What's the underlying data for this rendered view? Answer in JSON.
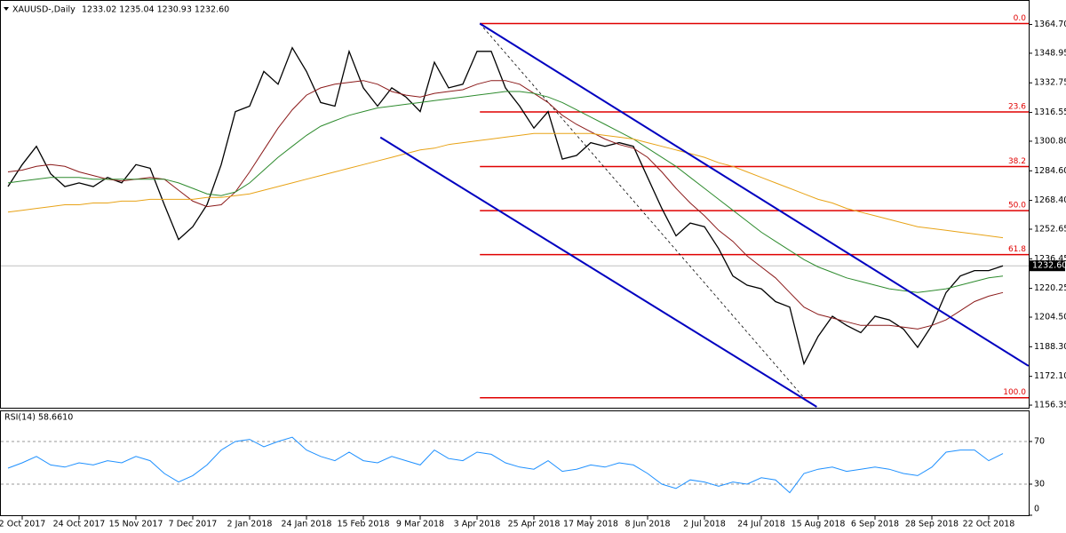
{
  "chart_data": {
    "type": "line",
    "title": "XAUUSD-,Daily",
    "ohlc_label": "1233.02 1235.04 1230.93 1232.60",
    "categories": [
      null,
      "2 Oct 2017",
      null,
      null,
      null,
      "24 Oct 2017",
      null,
      null,
      null,
      "15 Nov 2017",
      null,
      null,
      null,
      "7 Dec 2017",
      null,
      null,
      null,
      "2 Jan 2018",
      null,
      null,
      null,
      "24 Jan 2018",
      null,
      null,
      null,
      "15 Feb 2018",
      null,
      null,
      null,
      "9 Mar 2018",
      null,
      null,
      null,
      "3 Apr 2018",
      null,
      null,
      null,
      "25 Apr 2018",
      null,
      null,
      null,
      "17 May 2018",
      null,
      null,
      null,
      "8 Jun 2018",
      null,
      null,
      null,
      "2 Jul 2018",
      null,
      null,
      null,
      "24 Jul 2018",
      null,
      null,
      null,
      "15 Aug 2018",
      null,
      null,
      null,
      "6 Sep 2018",
      null,
      null,
      null,
      "28 Sep 2018",
      null,
      null,
      null,
      "22 Oct 2018",
      null
    ],
    "ylim": [
      1155.4,
      1374.2
    ],
    "yticks": [
      {
        "value": 1364.7,
        "label": "1364.70"
      },
      {
        "value": 1348.95,
        "label": "1348.95"
      },
      {
        "value": 1332.75,
        "label": "1332.75"
      },
      {
        "value": 1316.55,
        "label": "1316.55"
      },
      {
        "value": 1300.8,
        "label": "1300.80"
      },
      {
        "value": 1284.6,
        "label": "1284.60"
      },
      {
        "value": 1268.4,
        "label": "1268.40"
      },
      {
        "value": 1252.65,
        "label": "1252.65"
      },
      {
        "value": 1236.45,
        "label": "1236.45"
      },
      {
        "value": 1220.25,
        "label": "1220.25"
      },
      {
        "value": 1204.5,
        "label": "1204.50"
      },
      {
        "value": 1188.3,
        "label": "1188.30"
      },
      {
        "value": 1172.1,
        "label": "1172.10"
      },
      {
        "value": 1156.35,
        "label": "1156.35"
      }
    ],
    "series": [
      {
        "color": "#000000",
        "values": [
          1276,
          1288,
          1298,
          1283,
          1276,
          1278,
          1276,
          1281,
          1278,
          1288,
          1286,
          1266,
          1247,
          1254,
          1266,
          1288,
          1317,
          1320,
          1339,
          1332,
          1352,
          1339,
          1322,
          1320,
          1350,
          1330,
          1320,
          1330,
          1325,
          1317,
          1344,
          1330,
          1332,
          1350,
          1350,
          1330,
          1320,
          1308,
          1317,
          1291,
          1293,
          1300,
          1298,
          1300,
          1298,
          1281,
          1264,
          1249,
          1256,
          1254,
          1242,
          1227,
          1222,
          1220,
          1213,
          1210,
          1179,
          1194,
          1205,
          1200,
          1196,
          1205,
          1203,
          1198,
          1188,
          1200,
          1218,
          1227,
          1230,
          1230,
          1232.6
        ]
      },
      {
        "color": "#8b1a1a",
        "values": [
          1284,
          1285,
          1287,
          1288,
          1287,
          1284,
          1282,
          1280,
          1279,
          1280,
          1281,
          1280,
          1274,
          1268,
          1265,
          1266,
          1273,
          1284,
          1296,
          1308,
          1318,
          1326,
          1330,
          1332,
          1333,
          1334,
          1332,
          1328,
          1326,
          1325,
          1327,
          1328,
          1329,
          1332,
          1334,
          1334,
          1332,
          1327,
          1322,
          1315,
          1310,
          1306,
          1302,
          1299,
          1297,
          1292,
          1284,
          1275,
          1267,
          1260,
          1252,
          1246,
          1238,
          1232,
          1226,
          1218,
          1210,
          1206,
          1204,
          1202,
          1200,
          1200,
          1200,
          1199,
          1198,
          1200,
          1203,
          1208,
          1213,
          1216,
          1218
        ]
      },
      {
        "color": "#2e8b2e",
        "values": [
          1278,
          1279,
          1280,
          1281,
          1281,
          1281,
          1280,
          1280,
          1280,
          1280,
          1280,
          1280,
          1278,
          1275,
          1272,
          1271,
          1273,
          1278,
          1285,
          1292,
          1298,
          1304,
          1309,
          1312,
          1315,
          1317,
          1319,
          1320,
          1321,
          1322,
          1323,
          1324,
          1325,
          1326,
          1327,
          1328,
          1328,
          1327,
          1325,
          1322,
          1318,
          1314,
          1310,
          1306,
          1302,
          1297,
          1292,
          1287,
          1281,
          1275,
          1269,
          1263,
          1257,
          1251,
          1246,
          1241,
          1236,
          1232,
          1229,
          1226,
          1224,
          1222,
          1220,
          1219,
          1218,
          1219,
          1220,
          1222,
          1224,
          1226,
          1227
        ]
      },
      {
        "color": "#e8a317",
        "values": [
          1262,
          1263,
          1264,
          1265,
          1266,
          1266,
          1267,
          1267,
          1268,
          1268,
          1269,
          1269,
          1269,
          1269,
          1270,
          1270,
          1271,
          1272,
          1274,
          1276,
          1278,
          1280,
          1282,
          1284,
          1286,
          1288,
          1290,
          1292,
          1294,
          1296,
          1297,
          1299,
          1300,
          1301,
          1302,
          1303,
          1304,
          1305,
          1305,
          1305,
          1305,
          1305,
          1304,
          1303,
          1302,
          1300,
          1298,
          1296,
          1294,
          1292,
          1289,
          1287,
          1284,
          1281,
          1278,
          1275,
          1272,
          1269,
          1267,
          1264,
          1262,
          1260,
          1258,
          1256,
          1254,
          1253,
          1252,
          1251,
          1250,
          1249,
          1248
        ]
      }
    ],
    "current_price": {
      "value": 1232.6,
      "label": "1232.60"
    },
    "fib_color": "#e00000",
    "fib_levels": [
      {
        "label": "0.0",
        "price": 1365.2
      },
      {
        "label": "23.6",
        "price": 1316.8
      },
      {
        "label": "38.2",
        "price": 1286.9
      },
      {
        "label": "50.0",
        "price": 1262.8
      },
      {
        "label": "61.8",
        "price": 1238.7
      },
      {
        "label": "100.0",
        "price": 1160.4
      }
    ],
    "channel_color": "#0000c0",
    "channel_lines": [
      {
        "x": [
          33.2,
          71.8
        ],
        "price": [
          1365.2,
          1177.8
        ]
      },
      {
        "x": [
          26.2,
          56.9
        ],
        "price": [
          1302.9,
          1155.4
        ]
      }
    ],
    "dashed_line": {
      "x": [
        33.2,
        56.0
      ],
      "price": [
        1365.2,
        1160.4
      ]
    },
    "rsi": {
      "title": "RSI(14) 58.6610",
      "color": "#1e90ff",
      "ylim": [
        0,
        100
      ],
      "yticks": [
        70,
        30,
        0
      ],
      "levels": [
        70,
        30
      ],
      "values": [
        45,
        50,
        56,
        48,
        46,
        50,
        48,
        52,
        50,
        56,
        52,
        40,
        32,
        38,
        48,
        62,
        70,
        72,
        65,
        70,
        74,
        62,
        56,
        52,
        60,
        52,
        50,
        56,
        52,
        48,
        62,
        54,
        52,
        60,
        58,
        50,
        46,
        44,
        52,
        42,
        44,
        48,
        46,
        50,
        48,
        40,
        30,
        26,
        34,
        32,
        28,
        32,
        30,
        36,
        34,
        22,
        40,
        44,
        46,
        42,
        44,
        46,
        44,
        40,
        38,
        46,
        60,
        62,
        62,
        52,
        58.661
      ]
    }
  }
}
